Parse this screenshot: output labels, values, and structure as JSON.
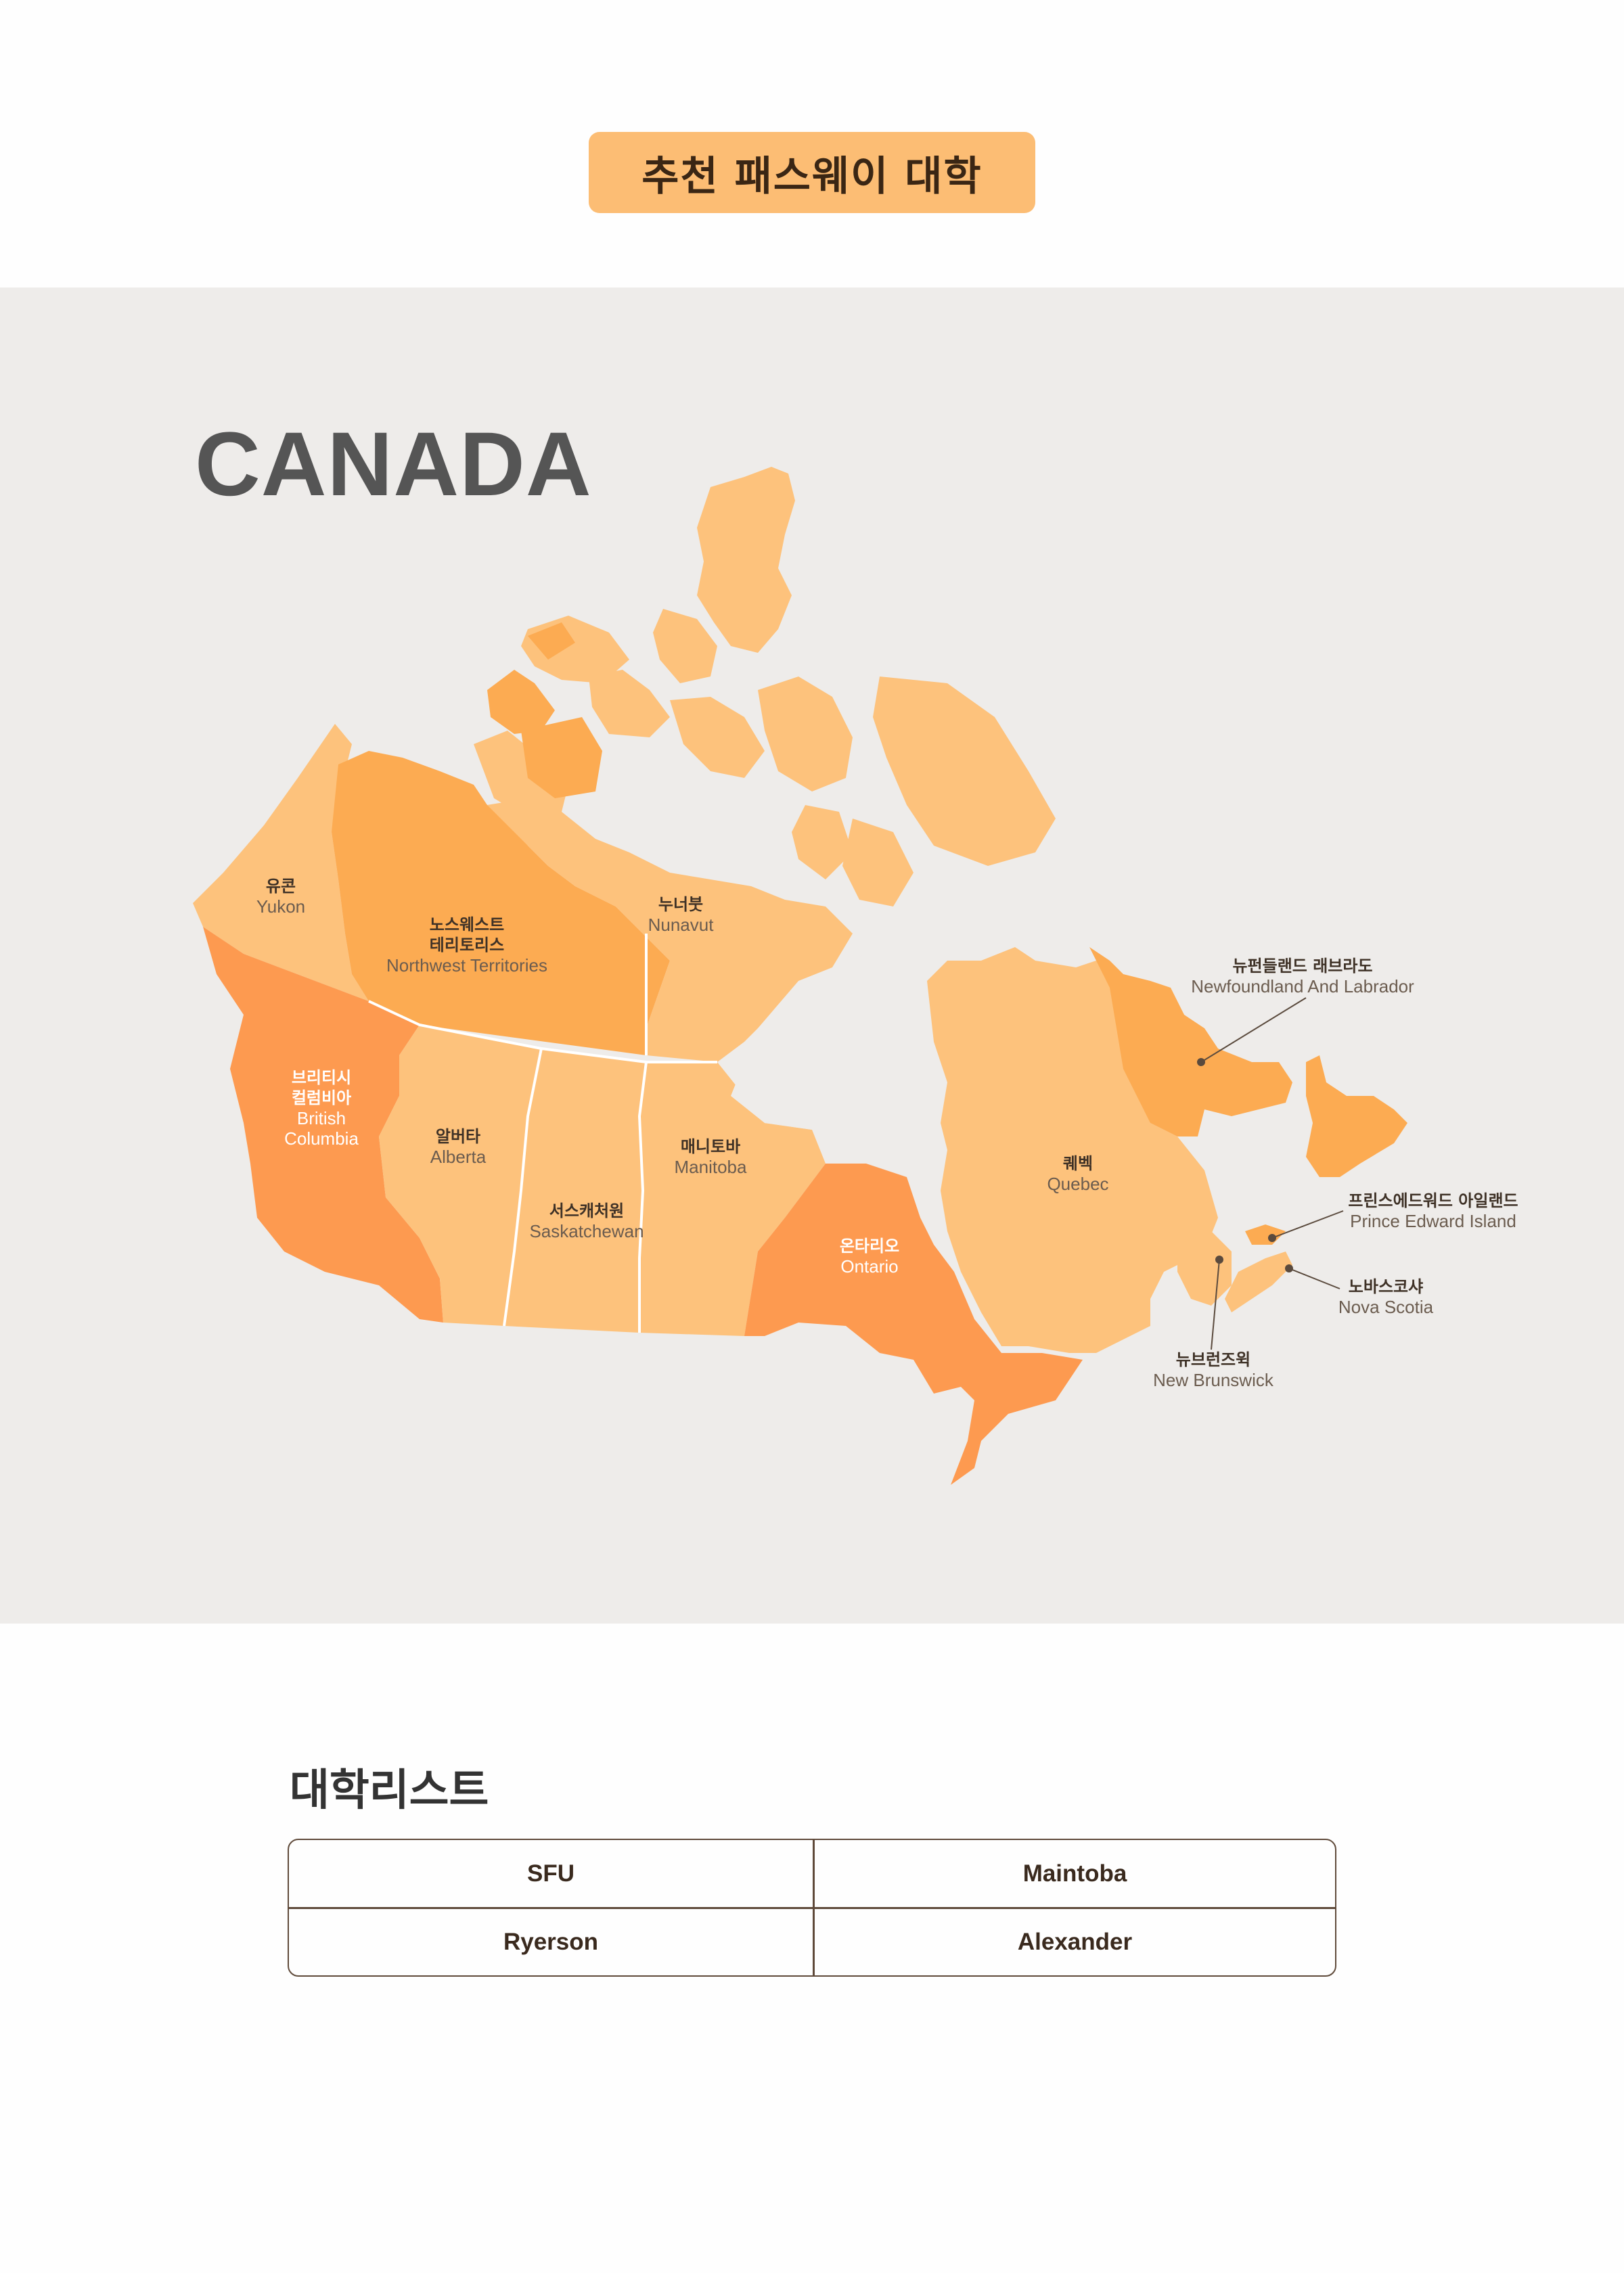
{
  "header": {
    "badge_label": "추천 패스웨이 대학"
  },
  "map": {
    "country_title": "CANADA",
    "colors": {
      "light": "#fdc27c",
      "medium": "#fcab52",
      "strong": "#fd9a50",
      "background": "#eeecea"
    },
    "provinces": [
      {
        "key": "yukon",
        "ko": "유콘",
        "en": "Yukon"
      },
      {
        "key": "nwt",
        "ko_lines": [
          "노스웨스트",
          "테리토리스"
        ],
        "en": "Northwest Territories"
      },
      {
        "key": "nunavut",
        "ko": "누너붓",
        "en": "Nunavut"
      },
      {
        "key": "bc",
        "ko_lines": [
          "브리티시",
          "컬럼비아"
        ],
        "en_lines": [
          "British",
          "Columbia"
        ]
      },
      {
        "key": "alberta",
        "ko": "알버타",
        "en": "Alberta"
      },
      {
        "key": "saskatchewan",
        "ko": "서스캐처원",
        "en": "Saskatchewan"
      },
      {
        "key": "manitoba",
        "ko": "매니토바",
        "en": "Manitoba"
      },
      {
        "key": "ontario",
        "ko": "온타리오",
        "en": "Ontario"
      },
      {
        "key": "quebec",
        "ko": "퀘벡",
        "en": "Quebec"
      },
      {
        "key": "newfoundland",
        "ko": "뉴펀들랜드 래브라도",
        "en": "Newfoundland And Labrador"
      },
      {
        "key": "pei",
        "ko": "프린스에드워드 아일랜드",
        "en": "Prince Edward Island"
      },
      {
        "key": "nova_scotia",
        "ko": "노바스코샤",
        "en": "Nova Scotia"
      },
      {
        "key": "new_brunswick",
        "ko": "뉴브런즈윅",
        "en": "New Brunswick"
      }
    ]
  },
  "universities": {
    "title": "대학리스트",
    "cells": [
      "SFU",
      "Maintoba",
      "Ryerson",
      "Alexander"
    ]
  }
}
